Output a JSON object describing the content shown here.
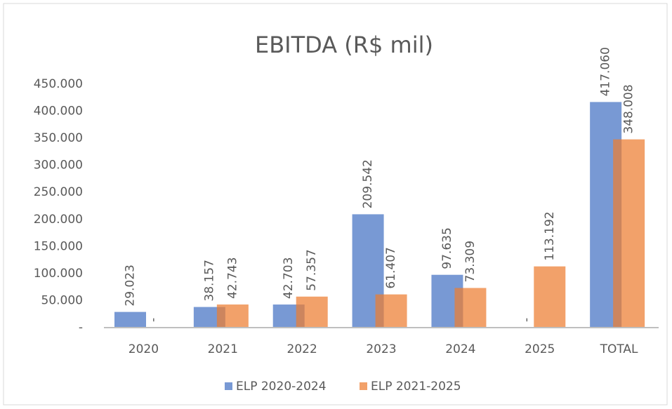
{
  "chart_data": {
    "type": "bar",
    "title": "EBITDA (R$ mil)",
    "categories": [
      "2020",
      "2021",
      "2022",
      "2023",
      "2024",
      "2025",
      "TOTAL"
    ],
    "series": [
      {
        "name": "ELP 2020-2024",
        "color": "#4472c4",
        "values": [
          29023,
          38157,
          42703,
          209542,
          97635,
          0,
          417060
        ],
        "value_labels": [
          "29.023",
          "38.157",
          "42.703",
          "209.542",
          "97.635",
          "-",
          "417.060"
        ]
      },
      {
        "name": "ELP 2021-2025",
        "color": "#ed7d31",
        "values": [
          0,
          42743,
          57357,
          61407,
          73309,
          113192,
          348008
        ],
        "value_labels": [
          "-",
          "42.743",
          "57.357",
          "61.407",
          "73.309",
          "113.192",
          "348.008"
        ]
      }
    ],
    "ylim": [
      0,
      450000
    ],
    "yticks": [
      {
        "value": 0,
        "label": "-"
      },
      {
        "value": 50000,
        "label": "50.000"
      },
      {
        "value": 100000,
        "label": "100.000"
      },
      {
        "value": 150000,
        "label": "150.000"
      },
      {
        "value": 200000,
        "label": "200.000"
      },
      {
        "value": 250000,
        "label": "250.000"
      },
      {
        "value": 300000,
        "label": "300.000"
      },
      {
        "value": 350000,
        "label": "350.000"
      },
      {
        "value": 400000,
        "label": "400.000"
      },
      {
        "value": 450000,
        "label": "450.000"
      }
    ],
    "grid": false,
    "legend": "bottom"
  }
}
